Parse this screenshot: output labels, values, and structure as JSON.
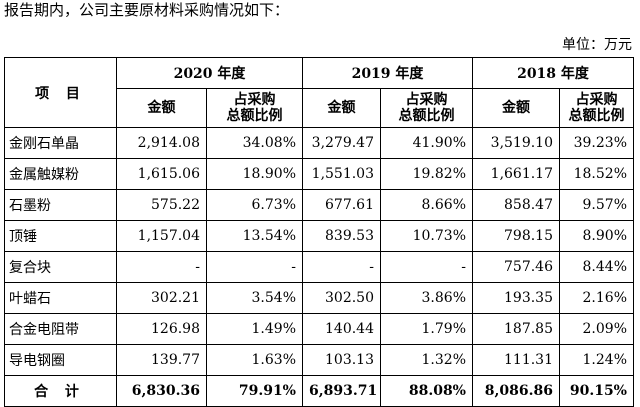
{
  "intro_text": "报告期内，公司主要原材料采购情况如下：",
  "unit_label": "单位：万元",
  "table": {
    "item_header": "项  目",
    "years": [
      "2020 年度",
      "2019 年度",
      "2018 年度"
    ],
    "sub_headers": {
      "amount": "金额",
      "ratio_line1": "占采购",
      "ratio_line2": "总额比例"
    },
    "rows": [
      {
        "name": "金刚石单晶",
        "v": [
          "2,914.08",
          "34.08%",
          "3,279.47",
          "41.90%",
          "3,519.10",
          "39.23%"
        ]
      },
      {
        "name": "金属触媒粉",
        "v": [
          "1,615.06",
          "18.90%",
          "1,551.03",
          "19.82%",
          "1,661.17",
          "18.52%"
        ]
      },
      {
        "name": "石墨粉",
        "v": [
          "575.22",
          "6.73%",
          "677.61",
          "8.66%",
          "858.47",
          "9.57%"
        ]
      },
      {
        "name": "顶锤",
        "v": [
          "1,157.04",
          "13.54%",
          "839.53",
          "10.73%",
          "798.15",
          "8.90%"
        ]
      },
      {
        "name": "复合块",
        "v": [
          "-",
          "-",
          "-",
          "-",
          "757.46",
          "8.44%"
        ]
      },
      {
        "name": "叶蜡石",
        "v": [
          "302.21",
          "3.54%",
          "302.50",
          "3.86%",
          "193.35",
          "2.16%"
        ]
      },
      {
        "name": "合金电阻带",
        "v": [
          "126.98",
          "1.49%",
          "140.44",
          "1.79%",
          "187.85",
          "2.09%"
        ]
      },
      {
        "name": "导电钢圈",
        "v": [
          "139.77",
          "1.63%",
          "103.13",
          "1.32%",
          "111.31",
          "1.24%"
        ]
      }
    ],
    "total": {
      "name": "合  计",
      "v": [
        "6,830.36",
        "79.91%",
        "6,893.71",
        "88.08%",
        "8,086.86",
        "90.15%"
      ]
    }
  }
}
